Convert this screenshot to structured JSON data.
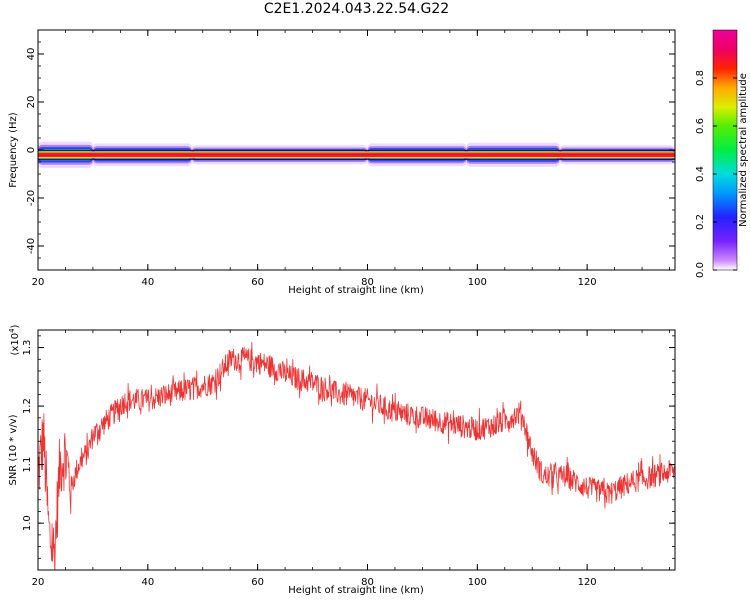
{
  "figure_title": "C2E1.2024.043.22.54.G22",
  "chart_data": [
    {
      "type": "heatmap",
      "title": "",
      "xlabel": "Height of straight line (km)",
      "ylabel": "Frequency (Hz)",
      "xlim": [
        20,
        136
      ],
      "ylim": [
        -50,
        50
      ],
      "xticks": [
        20,
        40,
        60,
        80,
        100,
        120
      ],
      "yticks": [
        -40,
        -20,
        0,
        20,
        40
      ],
      "colorbar": {
        "label": "Normalized spectral amplitude",
        "range": [
          0.0,
          1.0
        ],
        "ticks": [
          "0.0",
          "0.2",
          "0.4",
          "0.6",
          "0.8"
        ],
        "colormap": "rainbow"
      },
      "band_center_hz": -2,
      "band_weak_segments": [
        {
          "x_start": 20,
          "x_end": 30,
          "peak": 0.6
        },
        {
          "x_start": 30,
          "x_end": 48,
          "peak": 0.45
        },
        {
          "x_start": 48,
          "x_end": 80,
          "peak": 0.3
        },
        {
          "x_start": 80,
          "x_end": 98,
          "peak": 0.45
        },
        {
          "x_start": 98,
          "x_end": 115,
          "peak": 0.5
        },
        {
          "x_start": 115,
          "x_end": 136,
          "peak": 0.3
        }
      ],
      "grid": false
    },
    {
      "type": "line",
      "title": "",
      "xlabel": "Height of straight line (km)",
      "ylabel": "SNR (10 * v/v)",
      "y_multiplier": "(x10",
      "y_multiplier_exponent": "4",
      "y_multiplier_close": ")",
      "xlim": [
        20,
        136
      ],
      "ylim": [
        0.92,
        1.33
      ],
      "xticks": [
        20,
        40,
        60,
        80,
        100,
        120
      ],
      "yticks": [
        "1.0",
        "1.1",
        "1.2",
        "1.3"
      ],
      "series": [
        {
          "color": "#ee3333",
          "x": [
            20,
            21,
            22,
            23,
            24,
            25,
            26,
            27,
            28,
            29,
            30,
            32,
            34,
            36,
            38,
            40,
            44,
            48,
            52,
            55,
            58,
            62,
            66,
            70,
            75,
            80,
            85,
            90,
            95,
            100,
            104,
            108,
            110,
            112,
            116,
            120,
            124,
            128,
            132,
            136
          ],
          "y": [
            1.08,
            1.15,
            0.98,
            0.95,
            1.1,
            1.12,
            1.06,
            1.09,
            1.11,
            1.12,
            1.15,
            1.17,
            1.19,
            1.21,
            1.21,
            1.21,
            1.22,
            1.23,
            1.24,
            1.28,
            1.28,
            1.27,
            1.25,
            1.24,
            1.22,
            1.21,
            1.19,
            1.18,
            1.17,
            1.16,
            1.17,
            1.19,
            1.12,
            1.08,
            1.08,
            1.06,
            1.05,
            1.07,
            1.08,
            1.09
          ]
        }
      ],
      "noise_amplitude": 0.02,
      "grid": false
    }
  ]
}
